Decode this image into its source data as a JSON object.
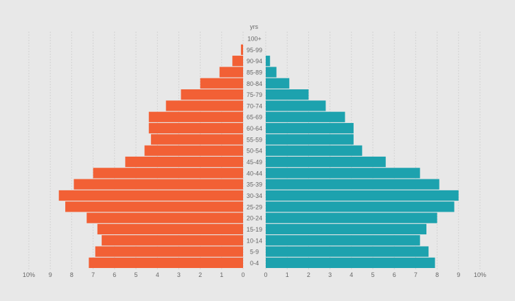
{
  "chart_data": {
    "type": "bar",
    "orientation": "horizontal",
    "layout": "population-pyramid",
    "age_axis_title": "yrs",
    "categories": [
      "0-4",
      "5-9",
      "10-14",
      "15-19",
      "20-24",
      "25-29",
      "30-34",
      "35-39",
      "40-44",
      "45-49",
      "50-54",
      "55-59",
      "60-64",
      "65-69",
      "70-74",
      "75-79",
      "80-84",
      "85-89",
      "90-94",
      "95-99",
      "100+"
    ],
    "series": [
      {
        "side": "left",
        "color": "#f26035",
        "values": [
          7.2,
          6.9,
          6.6,
          6.8,
          7.3,
          8.3,
          8.6,
          7.9,
          7.0,
          5.5,
          4.6,
          4.3,
          4.4,
          4.4,
          3.6,
          2.9,
          2.0,
          1.1,
          0.5,
          0.1,
          0.0
        ]
      },
      {
        "side": "right",
        "color": "#1da2ae",
        "values": [
          7.9,
          7.6,
          7.2,
          7.5,
          8.0,
          8.8,
          9.0,
          8.1,
          7.2,
          5.6,
          4.5,
          4.1,
          4.1,
          3.7,
          2.8,
          2.0,
          1.1,
          0.5,
          0.2,
          0.0,
          0.0
        ]
      }
    ],
    "xlim": [
      0,
      10
    ],
    "left_ticks": [
      "10%",
      "9",
      "8",
      "7",
      "6",
      "5",
      "4",
      "3",
      "2",
      "1",
      "0"
    ],
    "right_ticks": [
      "0",
      "1",
      "2",
      "3",
      "4",
      "5",
      "6",
      "7",
      "8",
      "9",
      "10%"
    ],
    "grid": true
  }
}
